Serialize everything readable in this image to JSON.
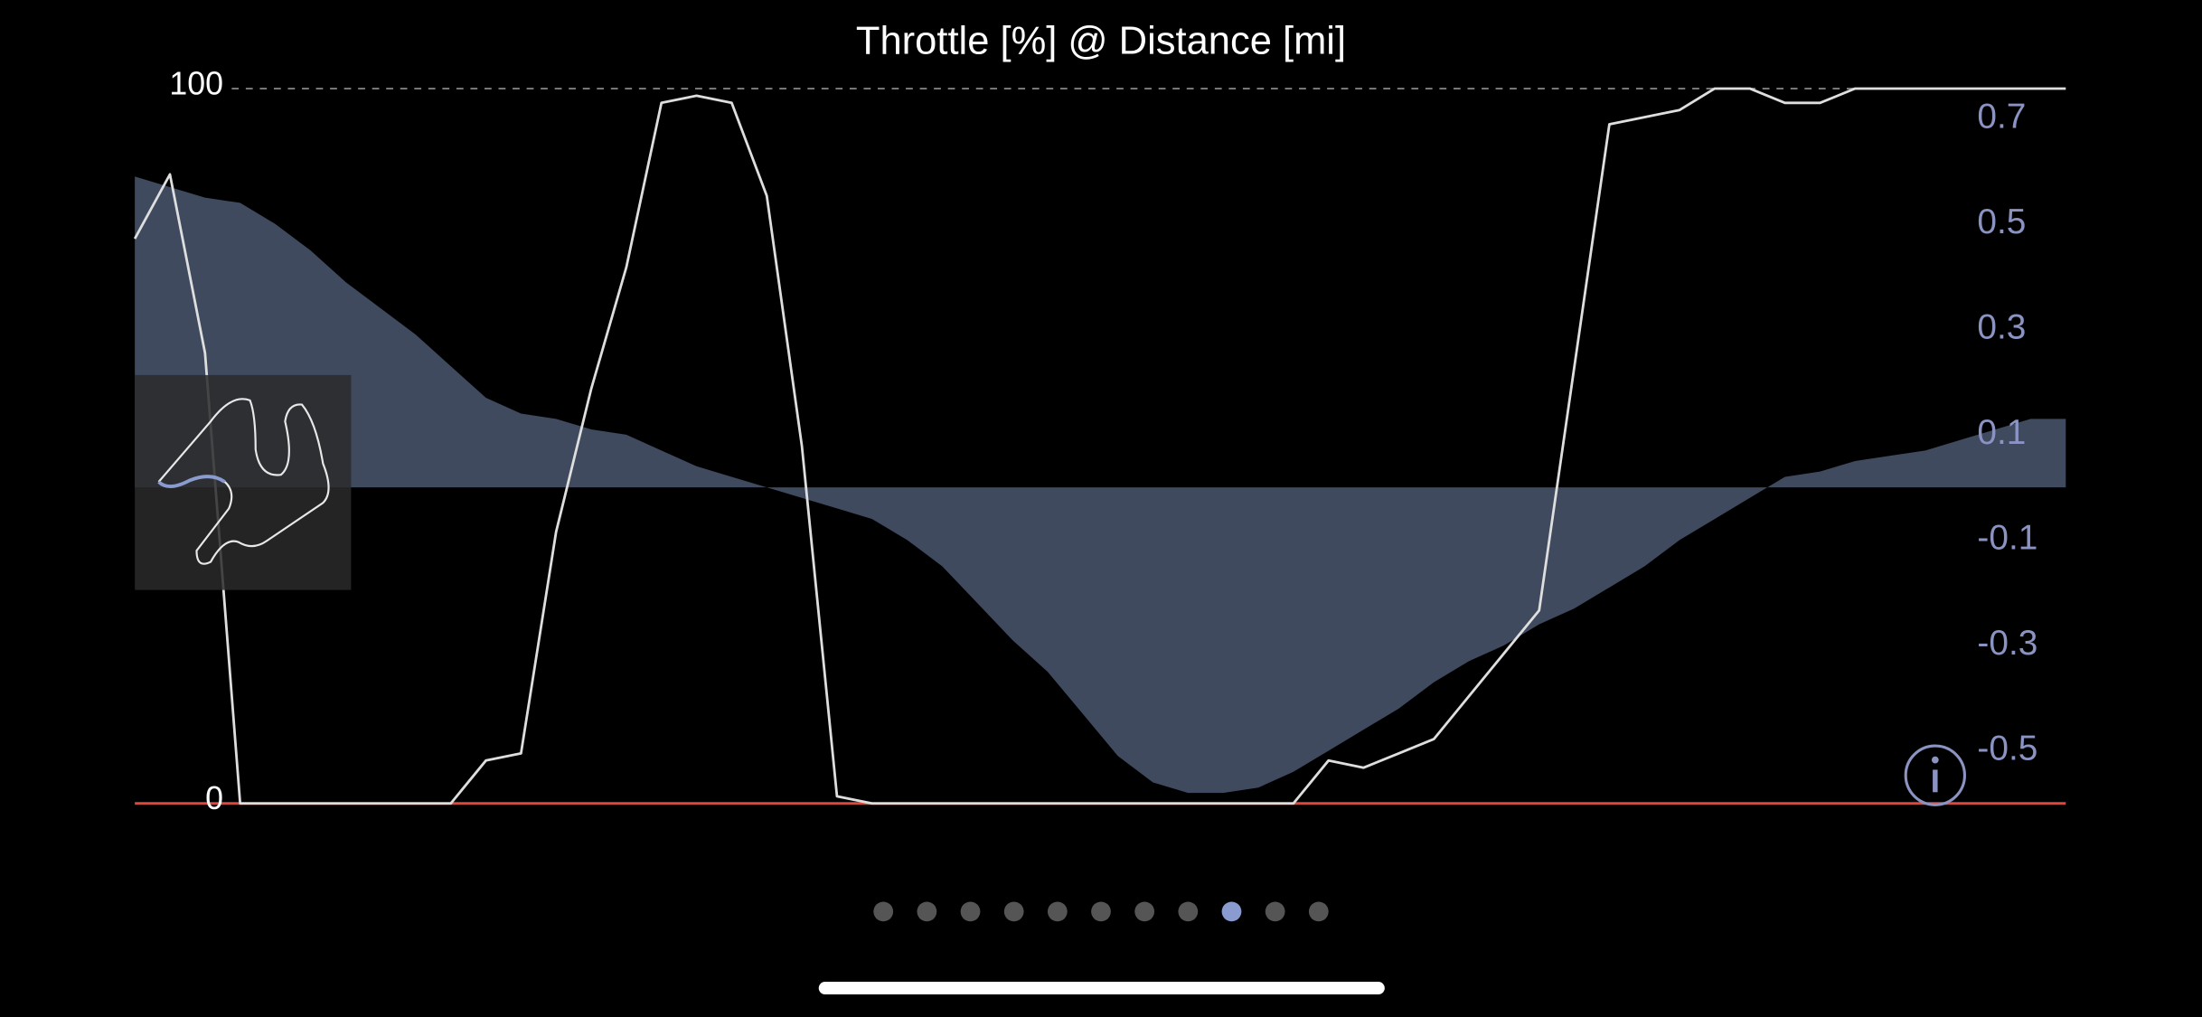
{
  "chart_data": {
    "type": "line",
    "title": "Throttle [%] @ Distance [mi]",
    "ylim": [
      0,
      100
    ],
    "yticks": [
      0,
      100
    ],
    "y2lim": [
      -0.6,
      0.757
    ],
    "y2ticks": [
      -0.5,
      -0.3,
      -0.1,
      0.1,
      0.3,
      0.5,
      0.7
    ],
    "series": [
      {
        "type": "area",
        "axis": "y2",
        "color": "#3f4a5e",
        "values": [
          0.59,
          0.57,
          0.55,
          0.54,
          0.5,
          0.45,
          0.39,
          0.34,
          0.29,
          0.23,
          0.17,
          0.14,
          0.13,
          0.11,
          0.1,
          0.07,
          0.04,
          0.02,
          0,
          -0.02,
          -0.04,
          -0.06,
          -0.1,
          -0.15,
          -0.22,
          -0.29,
          -0.35,
          -0.43,
          -0.51,
          -0.56,
          -0.58,
          -0.58,
          -0.57,
          -0.54,
          -0.5,
          -0.46,
          -0.42,
          -0.37,
          -0.33,
          -0.3,
          -0.26,
          -0.23,
          -0.19,
          -0.15,
          -0.1,
          -0.06,
          -0.02,
          0.02,
          0.03,
          0.05,
          0.06,
          0.07,
          0.09,
          0.11,
          0.13,
          0.13
        ]
      },
      {
        "type": "line",
        "axis": "y",
        "color": "#dedede",
        "values": [
          79,
          88,
          63,
          0,
          0,
          0,
          0,
          0,
          0,
          0,
          6,
          7,
          38,
          58,
          75,
          98,
          99,
          98,
          85,
          50,
          1,
          0,
          0,
          0,
          0,
          0,
          0,
          0,
          0,
          0,
          0,
          0,
          0,
          0,
          6,
          5,
          7,
          9,
          15,
          21,
          27,
          61,
          95,
          96,
          97,
          100,
          100,
          98,
          98,
          100,
          100,
          100,
          100,
          100,
          100,
          100
        ]
      }
    ]
  }
}
